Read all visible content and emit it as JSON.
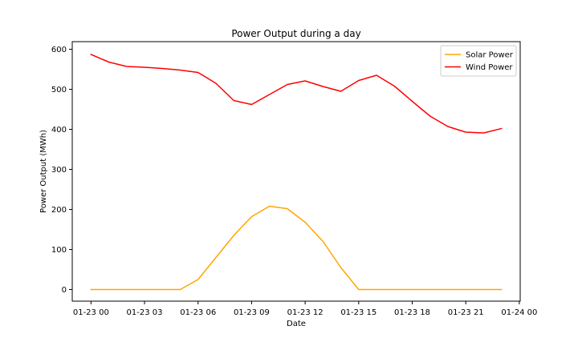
{
  "chart_data": {
    "type": "line",
    "title": "Power Output during a day",
    "xlabel": "Date",
    "ylabel": "Power Output (MWh)",
    "x_hours": [
      0,
      1,
      2,
      3,
      4,
      5,
      6,
      7,
      8,
      9,
      10,
      11,
      12,
      13,
      14,
      15,
      16,
      17,
      18,
      19,
      20,
      21,
      22,
      23
    ],
    "xlim_hours": [
      -1.05,
      24.05
    ],
    "ylim": [
      -29,
      619
    ],
    "x_ticks": [
      {
        "hour": 0,
        "label": "01-23 00"
      },
      {
        "hour": 3,
        "label": "01-23 03"
      },
      {
        "hour": 6,
        "label": "01-23 06"
      },
      {
        "hour": 9,
        "label": "01-23 09"
      },
      {
        "hour": 12,
        "label": "01-23 12"
      },
      {
        "hour": 15,
        "label": "01-23 15"
      },
      {
        "hour": 18,
        "label": "01-23 18"
      },
      {
        "hour": 21,
        "label": "01-23 21"
      },
      {
        "hour": 24,
        "label": "01-24 00"
      }
    ],
    "y_ticks": [
      0,
      100,
      200,
      300,
      400,
      500,
      600
    ],
    "grid": false,
    "legend_position": "top-right",
    "series": [
      {
        "name": "Solar Power",
        "color": "#ffa500",
        "values": [
          0,
          0,
          0,
          0,
          0,
          0,
          25,
          80,
          135,
          182,
          208,
          202,
          168,
          120,
          55,
          0,
          0,
          0,
          0,
          0,
          0,
          0,
          0,
          0
        ]
      },
      {
        "name": "Wind Power",
        "color": "#ff0000",
        "values": [
          587,
          568,
          557,
          555,
          552,
          548,
          542,
          515,
          472,
          462,
          487,
          512,
          521,
          507,
          495,
          522,
          535,
          508,
          470,
          433,
          407,
          393,
          391,
          402
        ]
      }
    ]
  }
}
